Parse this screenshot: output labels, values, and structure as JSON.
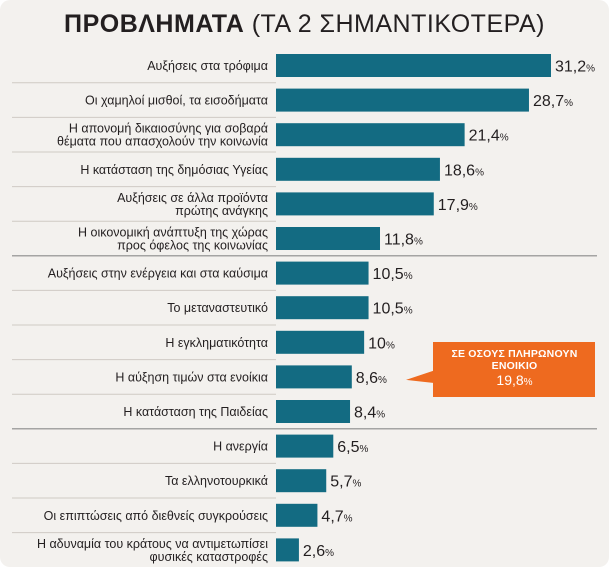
{
  "header": {
    "title_bold": "ΠΡΟΒΛΗΜΑΤΑ",
    "title_rest": "(ΤΑ 2 ΣΗΜΑΝΤΙΚΟΤΕΡΑ)"
  },
  "colors": {
    "bar": "#136b82",
    "callout": "#ee6a1f",
    "background": "#f3f1ee"
  },
  "chart_data": {
    "type": "bar",
    "orientation": "horizontal",
    "title": "ΠΡΟΒΛΗΜΑΤΑ (ΤΑ 2 ΣΗΜΑΝΤΙΚΟΤΕΡΑ)",
    "unit": "%",
    "xlim": [
      0,
      31.2
    ],
    "categories": [
      [
        "Αυξήσεις στα τρόφιμα"
      ],
      [
        "Οι χαμηλοί μισθοί, τα εισοδήματα"
      ],
      [
        "Η απονομή δικαιοσύνης για σοβαρά",
        "θέματα που απασχολούν την κοινωνία"
      ],
      [
        "Η κατάσταση της δημόσιας Υγείας"
      ],
      [
        "Αυξήσεις σε άλλα προϊόντα",
        "πρώτης ανάγκης"
      ],
      [
        "Η οικονομική ανάπτυξη της χώρας",
        "προς όφελος της κοινωνίας"
      ],
      [
        "Αυξήσεις στην ενέργεια και στα καύσιμα"
      ],
      [
        "Το μεταναστευτικό"
      ],
      [
        "Η εγκληματικότητα"
      ],
      [
        "Η αύξηση τιμών στα ενοίκια"
      ],
      [
        "Η κατάσταση της Παιδείας"
      ],
      [
        "Η ανεργία"
      ],
      [
        "Τα ελληνοτουρκικά"
      ],
      [
        "Οι επιπτώσεις από διεθνείς συγκρούσεις"
      ],
      [
        "Η αδυναμία του κράτους να αντιμετωπίσει",
        "φυσικές καταστροφές"
      ]
    ],
    "values": [
      31.2,
      28.7,
      21.4,
      18.6,
      17.9,
      11.8,
      10.5,
      10.5,
      10,
      8.6,
      8.4,
      6.5,
      5.7,
      4.7,
      2.6
    ],
    "value_labels": [
      "31,2",
      "28,7",
      "21,4",
      "18,6",
      "17,9",
      "11,8",
      "10,5",
      "10,5",
      "10",
      "8,6",
      "8,4",
      "6,5",
      "5,7",
      "4,7",
      "2,6"
    ],
    "group_breaks_after": [
      5,
      10
    ],
    "annotation": {
      "attached_to": "Η αύξηση τιμών στα ενοίκια",
      "text": "ΣΕ ΟΣΟΥΣ ΠΛΗΡΩΝΟΥΝ ΕΝΟΙΚΙΟ",
      "value": 19.8,
      "value_label": "19,8"
    }
  }
}
